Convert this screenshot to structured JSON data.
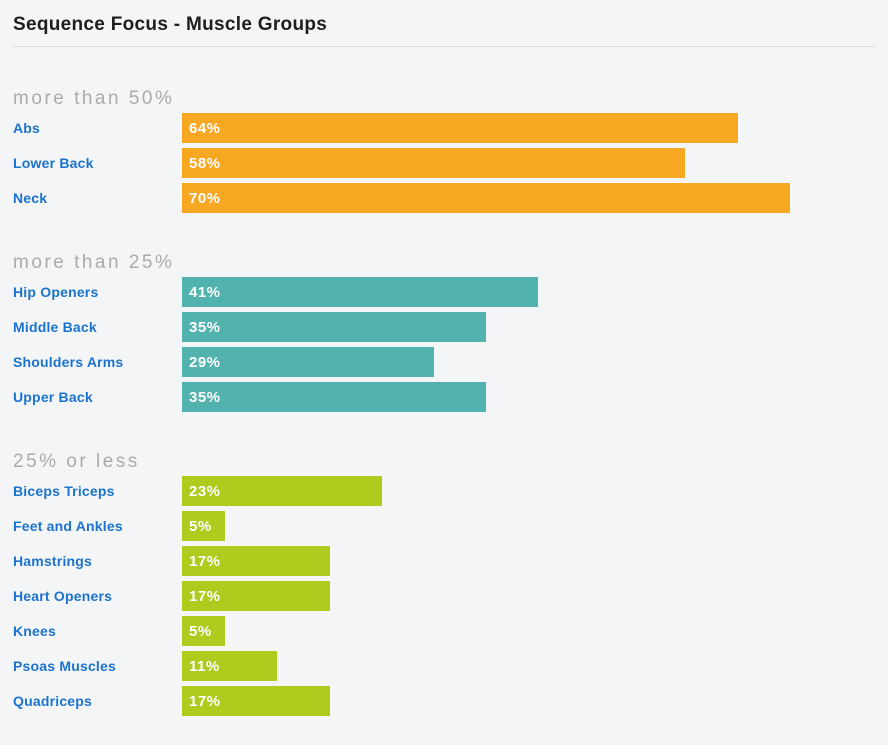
{
  "page": {
    "title": "Sequence Focus - Muscle Groups",
    "background_color": "#F4F5F6",
    "title_color": "#1E1E1E",
    "divider_color": "#DBDBDB",
    "group_header_color": "#ABABAB",
    "row_label_color": "#1B73CE",
    "bar_value_color": "#FFFFFF"
  },
  "chart_data": {
    "type": "bar",
    "orientation": "horizontal",
    "title": "Sequence Focus - Muscle Groups",
    "unit": "%",
    "xlim": [
      0,
      100
    ],
    "grid": false,
    "legend": false,
    "value_labels": "inside-left",
    "pixels_per_percent": 8.68,
    "groups": [
      {
        "label": "more than 50%",
        "color": "#F7A823",
        "items": [
          {
            "label": "Abs",
            "value": 64,
            "display": "64%"
          },
          {
            "label": "Lower Back",
            "value": 58,
            "display": "58%"
          },
          {
            "label": "Neck",
            "value": 70,
            "display": "70%"
          }
        ]
      },
      {
        "label": "more than 25%",
        "color": "#52B2AE",
        "items": [
          {
            "label": "Hip Openers",
            "value": 41,
            "display": "41%"
          },
          {
            "label": "Middle Back",
            "value": 35,
            "display": "35%"
          },
          {
            "label": "Shoulders Arms",
            "value": 29,
            "display": "29%"
          },
          {
            "label": "Upper Back",
            "value": 35,
            "display": "35%"
          }
        ]
      },
      {
        "label": "25% or less",
        "color": "#AFCB1D",
        "items": [
          {
            "label": "Biceps Triceps",
            "value": 23,
            "display": "23%"
          },
          {
            "label": "Feet and Ankles",
            "value": 5,
            "display": "5%"
          },
          {
            "label": "Hamstrings",
            "value": 17,
            "display": "17%"
          },
          {
            "label": "Heart Openers",
            "value": 17,
            "display": "17%"
          },
          {
            "label": "Knees",
            "value": 5,
            "display": "5%"
          },
          {
            "label": "Psoas Muscles",
            "value": 11,
            "display": "11%"
          },
          {
            "label": "Quadriceps",
            "value": 17,
            "display": "17%"
          }
        ]
      }
    ]
  }
}
